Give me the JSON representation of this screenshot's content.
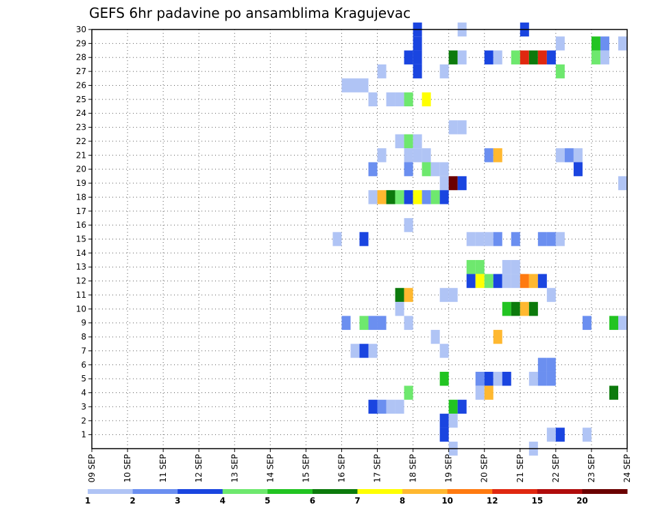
{
  "chart_data": {
    "type": "heatmap",
    "title": "GEFS 6hr padavine po ansamblima Kragujevac",
    "x_tick_labels": [
      "09 SEP",
      "10 SEP",
      "11 SEP",
      "12 SEP",
      "13 SEP",
      "14 SEP",
      "15 SEP",
      "16 SEP",
      "17 SEP",
      "18 SEP",
      "19 SEP",
      "20 SEP",
      "21 SEP",
      "22 SEP",
      "23 SEP",
      "24 SEP"
    ],
    "y_tick_labels": [
      "1",
      "2",
      "3",
      "4",
      "5",
      "6",
      "7",
      "8",
      "9",
      "10",
      "11",
      "12",
      "13",
      "14",
      "15",
      "16",
      "17",
      "18",
      "19",
      "20",
      "21",
      "22",
      "23",
      "24",
      "25",
      "26",
      "27",
      "28",
      "29",
      "30"
    ],
    "x_range_days": [
      9,
      24
    ],
    "y_range": [
      0,
      30
    ],
    "steps_per_day": 4,
    "grid": "dotted",
    "colorbar": {
      "position": "bottom",
      "labels": [
        "1",
        "2",
        "3",
        "4",
        "5",
        "6",
        "7",
        "8",
        "10",
        "12",
        "15",
        "20"
      ],
      "colors": [
        "#b0c4f5",
        "#6b8ff0",
        "#1a45e0",
        "#6ee86e",
        "#22c422",
        "#0c7a0c",
        "#ffff00",
        "#ffb830",
        "#ff7a10",
        "#e02810",
        "#b00c0c",
        "#6b0000"
      ]
    },
    "cells": [
      {
        "member": 30,
        "day": 18,
        "step": 0,
        "level": 2
      },
      {
        "member": 30,
        "day": 19,
        "step": 1,
        "level": 0
      },
      {
        "member": 30,
        "day": 21,
        "step": 0,
        "level": 2
      },
      {
        "member": 29,
        "day": 18,
        "step": 0,
        "level": 2
      },
      {
        "member": 29,
        "day": 22,
        "step": 0,
        "level": 0
      },
      {
        "member": 29,
        "day": 23,
        "step": 0,
        "level": 4
      },
      {
        "member": 29,
        "day": 23,
        "step": 1,
        "level": 1
      },
      {
        "member": 29,
        "day": 23,
        "step": 3,
        "level": 0
      },
      {
        "member": 28,
        "day": 17,
        "step": 3,
        "level": 2
      },
      {
        "member": 28,
        "day": 18,
        "step": 0,
        "level": 2
      },
      {
        "member": 28,
        "day": 19,
        "step": 0,
        "level": 5
      },
      {
        "member": 28,
        "day": 19,
        "step": 1,
        "level": 0
      },
      {
        "member": 28,
        "day": 20,
        "step": 0,
        "level": 2
      },
      {
        "member": 28,
        "day": 20,
        "step": 1,
        "level": 0
      },
      {
        "member": 28,
        "day": 20,
        "step": 3,
        "level": 3
      },
      {
        "member": 28,
        "day": 21,
        "step": 0,
        "level": 9
      },
      {
        "member": 28,
        "day": 21,
        "step": 1,
        "level": 5
      },
      {
        "member": 28,
        "day": 21,
        "step": 2,
        "level": 9
      },
      {
        "member": 28,
        "day": 21,
        "step": 3,
        "level": 2
      },
      {
        "member": 28,
        "day": 23,
        "step": 0,
        "level": 3
      },
      {
        "member": 28,
        "day": 23,
        "step": 1,
        "level": 0
      },
      {
        "member": 27,
        "day": 17,
        "step": 0,
        "level": 0
      },
      {
        "member": 27,
        "day": 18,
        "step": 0,
        "level": 2
      },
      {
        "member": 27,
        "day": 18,
        "step": 3,
        "level": 0
      },
      {
        "member": 27,
        "day": 22,
        "step": 0,
        "level": 3
      },
      {
        "member": 26,
        "day": 16,
        "step": 0,
        "level": 0
      },
      {
        "member": 26,
        "day": 16,
        "step": 1,
        "level": 0
      },
      {
        "member": 26,
        "day": 16,
        "step": 2,
        "level": 0
      },
      {
        "member": 25,
        "day": 16,
        "step": 3,
        "level": 0
      },
      {
        "member": 25,
        "day": 17,
        "step": 1,
        "level": 0
      },
      {
        "member": 25,
        "day": 17,
        "step": 2,
        "level": 0
      },
      {
        "member": 25,
        "day": 17,
        "step": 3,
        "level": 3
      },
      {
        "member": 25,
        "day": 18,
        "step": 1,
        "level": 6
      },
      {
        "member": 23,
        "day": 19,
        "step": 0,
        "level": 0
      },
      {
        "member": 23,
        "day": 19,
        "step": 1,
        "level": 0
      },
      {
        "member": 22,
        "day": 17,
        "step": 2,
        "level": 0
      },
      {
        "member": 22,
        "day": 17,
        "step": 3,
        "level": 3
      },
      {
        "member": 22,
        "day": 18,
        "step": 0,
        "level": 0
      },
      {
        "member": 21,
        "day": 17,
        "step": 0,
        "level": 0
      },
      {
        "member": 21,
        "day": 17,
        "step": 3,
        "level": 0
      },
      {
        "member": 21,
        "day": 18,
        "step": 0,
        "level": 0
      },
      {
        "member": 21,
        "day": 18,
        "step": 1,
        "level": 0
      },
      {
        "member": 21,
        "day": 20,
        "step": 0,
        "level": 1
      },
      {
        "member": 21,
        "day": 20,
        "step": 1,
        "level": 7
      },
      {
        "member": 21,
        "day": 22,
        "step": 0,
        "level": 0
      },
      {
        "member": 21,
        "day": 22,
        "step": 1,
        "level": 1
      },
      {
        "member": 21,
        "day": 22,
        "step": 2,
        "level": 0
      },
      {
        "member": 20,
        "day": 16,
        "step": 3,
        "level": 1
      },
      {
        "member": 20,
        "day": 17,
        "step": 3,
        "level": 1
      },
      {
        "member": 20,
        "day": 18,
        "step": 1,
        "level": 3
      },
      {
        "member": 20,
        "day": 18,
        "step": 2,
        "level": 0
      },
      {
        "member": 20,
        "day": 18,
        "step": 3,
        "level": 0
      },
      {
        "member": 20,
        "day": 22,
        "step": 2,
        "level": 2
      },
      {
        "member": 19,
        "day": 18,
        "step": 3,
        "level": 0
      },
      {
        "member": 19,
        "day": 19,
        "step": 0,
        "level": 11
      },
      {
        "member": 19,
        "day": 19,
        "step": 1,
        "level": 2
      },
      {
        "member": 19,
        "day": 23,
        "step": 3,
        "level": 0
      },
      {
        "member": 18,
        "day": 16,
        "step": 3,
        "level": 0
      },
      {
        "member": 18,
        "day": 17,
        "step": 0,
        "level": 7
      },
      {
        "member": 18,
        "day": 17,
        "step": 1,
        "level": 5
      },
      {
        "member": 18,
        "day": 17,
        "step": 2,
        "level": 3
      },
      {
        "member": 18,
        "day": 17,
        "step": 3,
        "level": 2
      },
      {
        "member": 18,
        "day": 18,
        "step": 0,
        "level": 6
      },
      {
        "member": 18,
        "day": 18,
        "step": 1,
        "level": 1
      },
      {
        "member": 18,
        "day": 18,
        "step": 2,
        "level": 3
      },
      {
        "member": 18,
        "day": 18,
        "step": 3,
        "level": 2
      },
      {
        "member": 16,
        "day": 17,
        "step": 3,
        "level": 0
      },
      {
        "member": 15,
        "day": 15,
        "step": 3,
        "level": 0
      },
      {
        "member": 15,
        "day": 16,
        "step": 2,
        "level": 2
      },
      {
        "member": 15,
        "day": 19,
        "step": 2,
        "level": 0
      },
      {
        "member": 15,
        "day": 19,
        "step": 3,
        "level": 0
      },
      {
        "member": 15,
        "day": 20,
        "step": 0,
        "level": 0
      },
      {
        "member": 15,
        "day": 20,
        "step": 1,
        "level": 1
      },
      {
        "member": 15,
        "day": 20,
        "step": 3,
        "level": 1
      },
      {
        "member": 15,
        "day": 21,
        "step": 2,
        "level": 1
      },
      {
        "member": 15,
        "day": 21,
        "step": 3,
        "level": 1
      },
      {
        "member": 15,
        "day": 22,
        "step": 0,
        "level": 0
      },
      {
        "member": 13,
        "day": 19,
        "step": 2,
        "level": 3
      },
      {
        "member": 13,
        "day": 19,
        "step": 3,
        "level": 3
      },
      {
        "member": 13,
        "day": 20,
        "step": 2,
        "level": 0
      },
      {
        "member": 13,
        "day": 20,
        "step": 3,
        "level": 0
      },
      {
        "member": 12,
        "day": 19,
        "step": 2,
        "level": 2
      },
      {
        "member": 12,
        "day": 19,
        "step": 3,
        "level": 6
      },
      {
        "member": 12,
        "day": 20,
        "step": 0,
        "level": 3
      },
      {
        "member": 12,
        "day": 20,
        "step": 1,
        "level": 2
      },
      {
        "member": 12,
        "day": 20,
        "step": 2,
        "level": 0
      },
      {
        "member": 12,
        "day": 20,
        "step": 3,
        "level": 0
      },
      {
        "member": 12,
        "day": 21,
        "step": 0,
        "level": 8
      },
      {
        "member": 12,
        "day": 21,
        "step": 1,
        "level": 7
      },
      {
        "member": 12,
        "day": 21,
        "step": 2,
        "level": 2
      },
      {
        "member": 11,
        "day": 17,
        "step": 2,
        "level": 5
      },
      {
        "member": 11,
        "day": 17,
        "step": 3,
        "level": 7
      },
      {
        "member": 11,
        "day": 18,
        "step": 3,
        "level": 0
      },
      {
        "member": 11,
        "day": 19,
        "step": 0,
        "level": 0
      },
      {
        "member": 11,
        "day": 21,
        "step": 3,
        "level": 0
      },
      {
        "member": 10,
        "day": 17,
        "step": 2,
        "level": 0
      },
      {
        "member": 10,
        "day": 20,
        "step": 2,
        "level": 4
      },
      {
        "member": 10,
        "day": 20,
        "step": 3,
        "level": 5
      },
      {
        "member": 10,
        "day": 21,
        "step": 0,
        "level": 7
      },
      {
        "member": 10,
        "day": 21,
        "step": 1,
        "level": 5
      },
      {
        "member": 9,
        "day": 16,
        "step": 0,
        "level": 1
      },
      {
        "member": 9,
        "day": 16,
        "step": 2,
        "level": 3
      },
      {
        "member": 9,
        "day": 16,
        "step": 3,
        "level": 1
      },
      {
        "member": 9,
        "day": 17,
        "step": 0,
        "level": 1
      },
      {
        "member": 9,
        "day": 17,
        "step": 3,
        "level": 0
      },
      {
        "member": 9,
        "day": 22,
        "step": 3,
        "level": 1
      },
      {
        "member": 9,
        "day": 23,
        "step": 2,
        "level": 4
      },
      {
        "member": 9,
        "day": 23,
        "step": 3,
        "level": 0
      },
      {
        "member": 8,
        "day": 18,
        "step": 2,
        "level": 0
      },
      {
        "member": 8,
        "day": 20,
        "step": 1,
        "level": 7
      },
      {
        "member": 7,
        "day": 16,
        "step": 1,
        "level": 0
      },
      {
        "member": 7,
        "day": 16,
        "step": 2,
        "level": 2
      },
      {
        "member": 7,
        "day": 16,
        "step": 3,
        "level": 0
      },
      {
        "member": 7,
        "day": 18,
        "step": 3,
        "level": 0
      },
      {
        "member": 6,
        "day": 21,
        "step": 2,
        "level": 1
      },
      {
        "member": 6,
        "day": 21,
        "step": 3,
        "level": 1
      },
      {
        "member": 5,
        "day": 18,
        "step": 3,
        "level": 4
      },
      {
        "member": 5,
        "day": 19,
        "step": 3,
        "level": 1
      },
      {
        "member": 5,
        "day": 20,
        "step": 0,
        "level": 2
      },
      {
        "member": 5,
        "day": 20,
        "step": 1,
        "level": 0
      },
      {
        "member": 5,
        "day": 20,
        "step": 2,
        "level": 2
      },
      {
        "member": 5,
        "day": 21,
        "step": 1,
        "level": 0
      },
      {
        "member": 5,
        "day": 21,
        "step": 2,
        "level": 1
      },
      {
        "member": 5,
        "day": 21,
        "step": 3,
        "level": 1
      },
      {
        "member": 4,
        "day": 17,
        "step": 3,
        "level": 3
      },
      {
        "member": 4,
        "day": 19,
        "step": 3,
        "level": 0
      },
      {
        "member": 4,
        "day": 20,
        "step": 0,
        "level": 7
      },
      {
        "member": 4,
        "day": 23,
        "step": 2,
        "level": 5
      },
      {
        "member": 3,
        "day": 16,
        "step": 3,
        "level": 2
      },
      {
        "member": 3,
        "day": 17,
        "step": 0,
        "level": 1
      },
      {
        "member": 3,
        "day": 17,
        "step": 1,
        "level": 0
      },
      {
        "member": 3,
        "day": 17,
        "step": 2,
        "level": 0
      },
      {
        "member": 3,
        "day": 19,
        "step": 0,
        "level": 4
      },
      {
        "member": 3,
        "day": 19,
        "step": 1,
        "level": 2
      },
      {
        "member": 2,
        "day": 18,
        "step": 3,
        "level": 2
      },
      {
        "member": 2,
        "day": 19,
        "step": 0,
        "level": 0
      },
      {
        "member": 1,
        "day": 18,
        "step": 3,
        "level": 2
      },
      {
        "member": 1,
        "day": 21,
        "step": 3,
        "level": 0
      },
      {
        "member": 1,
        "day": 22,
        "step": 0,
        "level": 2
      },
      {
        "member": 1,
        "day": 22,
        "step": 3,
        "level": 0
      },
      {
        "member": 0,
        "day": 19,
        "step": 0,
        "level": 0
      },
      {
        "member": 0,
        "day": 21,
        "step": 1,
        "level": 0
      }
    ]
  }
}
